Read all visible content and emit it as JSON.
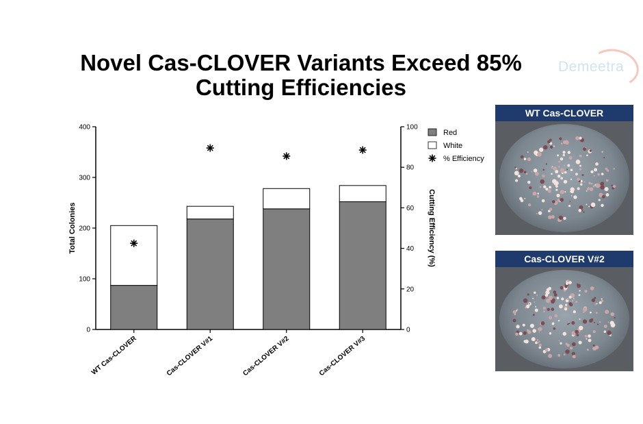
{
  "slide": {
    "title_line1": "Novel Cas-CLOVER Variants Exceed 85%",
    "title_line2": "Cutting Efficiencies",
    "brand": "Demeetra"
  },
  "photos": [
    {
      "label": "WT Cas-CLOVER"
    },
    {
      "label": "Cas-CLOVER V#2"
    }
  ],
  "colors": {
    "red_bar": "#7f7f7f",
    "white_bar": "#ffffff",
    "photo_label_bg": "#1f3b6e"
  },
  "chart_data": {
    "type": "bar",
    "stacked": true,
    "categories": [
      "WT Cas-CLOVER",
      "Cas-CLOVER V#1",
      "Cas-CLOVER V#2",
      "Cas-CLOVER V#3"
    ],
    "series": [
      {
        "name": "Red",
        "values": [
          87,
          218,
          238,
          252
        ],
        "color": "#7f7f7f"
      },
      {
        "name": "White",
        "values": [
          118,
          25,
          40,
          32
        ],
        "color": "#ffffff"
      }
    ],
    "secondary_series": {
      "name": "% Efficiency",
      "marker": "asterisk",
      "values": [
        42.5,
        89.5,
        85.5,
        88.5
      ]
    },
    "ylabel": "Total Colonies",
    "ylim": [
      0,
      400
    ],
    "yticks": [
      0,
      100,
      200,
      300,
      400
    ],
    "y2label": "Cutting Efficiency (%)",
    "y2lim": [
      0,
      100
    ],
    "y2ticks": [
      0,
      20,
      40,
      60,
      80,
      100
    ],
    "legend": "top-right",
    "grid": false
  }
}
